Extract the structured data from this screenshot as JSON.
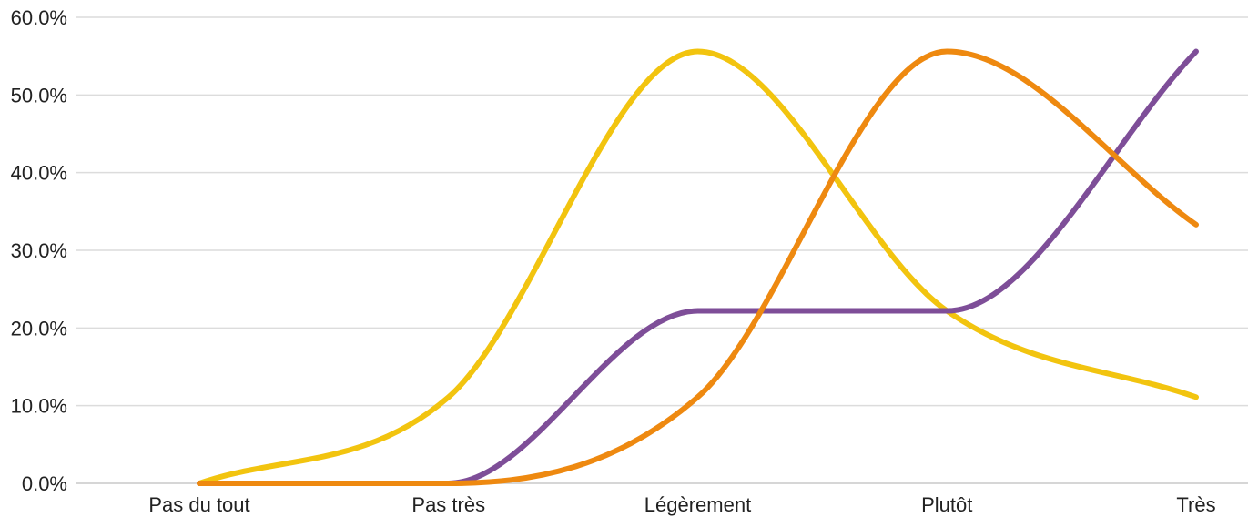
{
  "chart_data": {
    "type": "line",
    "title": "",
    "xlabel": "",
    "ylabel": "",
    "categories": [
      "Pas du tout",
      "Pas très",
      "Légèrement",
      "Plutôt",
      "Très"
    ],
    "ylim": [
      0,
      60
    ],
    "yticks": [
      "0.0%",
      "10.0%",
      "20.0%",
      "30.0%",
      "40.0%",
      "50.0%",
      "60.0%"
    ],
    "grid": true,
    "legend": "none",
    "smooth": true,
    "series": [
      {
        "color": "#F2C40F",
        "values": [
          0,
          11.1,
          55.6,
          22.2,
          11.1
        ]
      },
      {
        "color": "#7E4E98",
        "values": [
          0,
          0,
          22.2,
          22.2,
          55.6
        ]
      },
      {
        "color": "#EE8910",
        "values": [
          0,
          0,
          11.1,
          55.6,
          33.3
        ]
      }
    ]
  }
}
